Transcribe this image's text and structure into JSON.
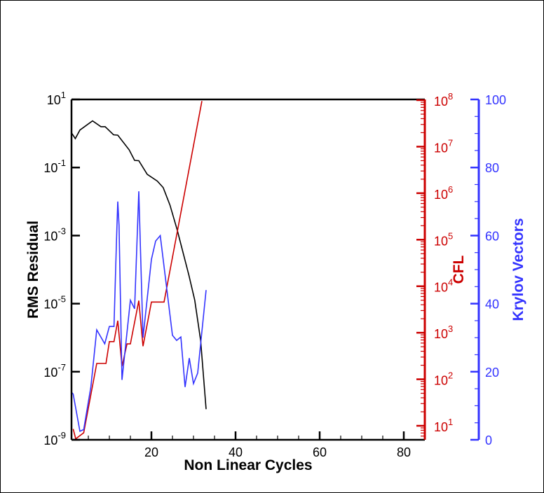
{
  "chart_data": {
    "type": "line",
    "xlabel": "Non Linear Cycles",
    "xlim": [
      1,
      85
    ],
    "x_ticks": [
      20,
      40,
      60,
      80
    ],
    "axes": {
      "left": {
        "label": "RMS Residual",
        "scale": "log",
        "ylim_exp": [
          -9,
          1
        ],
        "tick_exps": [
          1,
          -1,
          -3,
          -5,
          -7,
          -9
        ],
        "color": "#000000"
      },
      "cfl": {
        "label": "CFL",
        "scale": "log",
        "ylim_exp": [
          0.7,
          8
        ],
        "tick_exps": [
          8,
          7,
          6,
          5,
          4,
          3,
          2,
          1
        ],
        "color": "#cc0000"
      },
      "krylov": {
        "label": "Krylov Vectors",
        "scale": "linear",
        "ylim": [
          0,
          100
        ],
        "ticks": [
          0,
          20,
          40,
          60,
          80,
          100
        ],
        "color": "#3333ff"
      }
    },
    "series": [
      {
        "name": "RMS Residual",
        "axis": "left",
        "color": "#000000",
        "log10": true,
        "x": [
          1.1,
          1.9,
          3,
          6,
          8,
          9,
          11,
          12,
          14.7,
          16,
          17,
          19,
          21.4,
          22.8,
          24.4,
          26.1,
          28.9,
          30.3,
          31.7,
          33
        ],
        "y": [
          0.0,
          -0.15,
          0.1,
          0.37,
          0.2,
          0.2,
          -0.04,
          -0.05,
          -0.48,
          -0.79,
          -0.8,
          -1.2,
          -1.4,
          -1.59,
          -2.1,
          -2.82,
          -4.16,
          -4.9,
          -6.08,
          -8.1
        ]
      },
      {
        "name": "CFL",
        "axis": "cfl",
        "color": "#cc0000",
        "log10": true,
        "x": [
          1.4,
          2,
          3.9,
          7,
          9.2,
          10,
          11.1,
          12,
          13,
          14.2,
          15,
          17,
          18,
          20,
          23,
          32
        ],
        "y": [
          0.93,
          0.72,
          0.85,
          2.34,
          2.34,
          2.81,
          2.81,
          3.26,
          2.28,
          2.76,
          2.76,
          3.69,
          2.71,
          3.66,
          3.66,
          7.98
        ]
      },
      {
        "name": "Krylov Vectors",
        "axis": "krylov",
        "color": "#3333ff",
        "log10": false,
        "x": [
          1,
          1.4,
          3,
          3.9,
          5.6,
          7,
          8.9,
          10,
          11.1,
          11.7,
          12,
          12.3,
          13,
          15,
          16,
          17,
          18,
          20,
          21,
          22.1,
          25,
          26,
          27,
          28,
          29,
          30,
          31,
          33
        ],
        "y": [
          14,
          13.4,
          2.5,
          3,
          15.5,
          32.3,
          28.2,
          33.3,
          33.3,
          58.7,
          70,
          63,
          17.6,
          41,
          38.5,
          73,
          30,
          53,
          58.4,
          60,
          30.7,
          29.2,
          30.2,
          15.5,
          24,
          16.5,
          19.6,
          44
        ]
      }
    ]
  }
}
